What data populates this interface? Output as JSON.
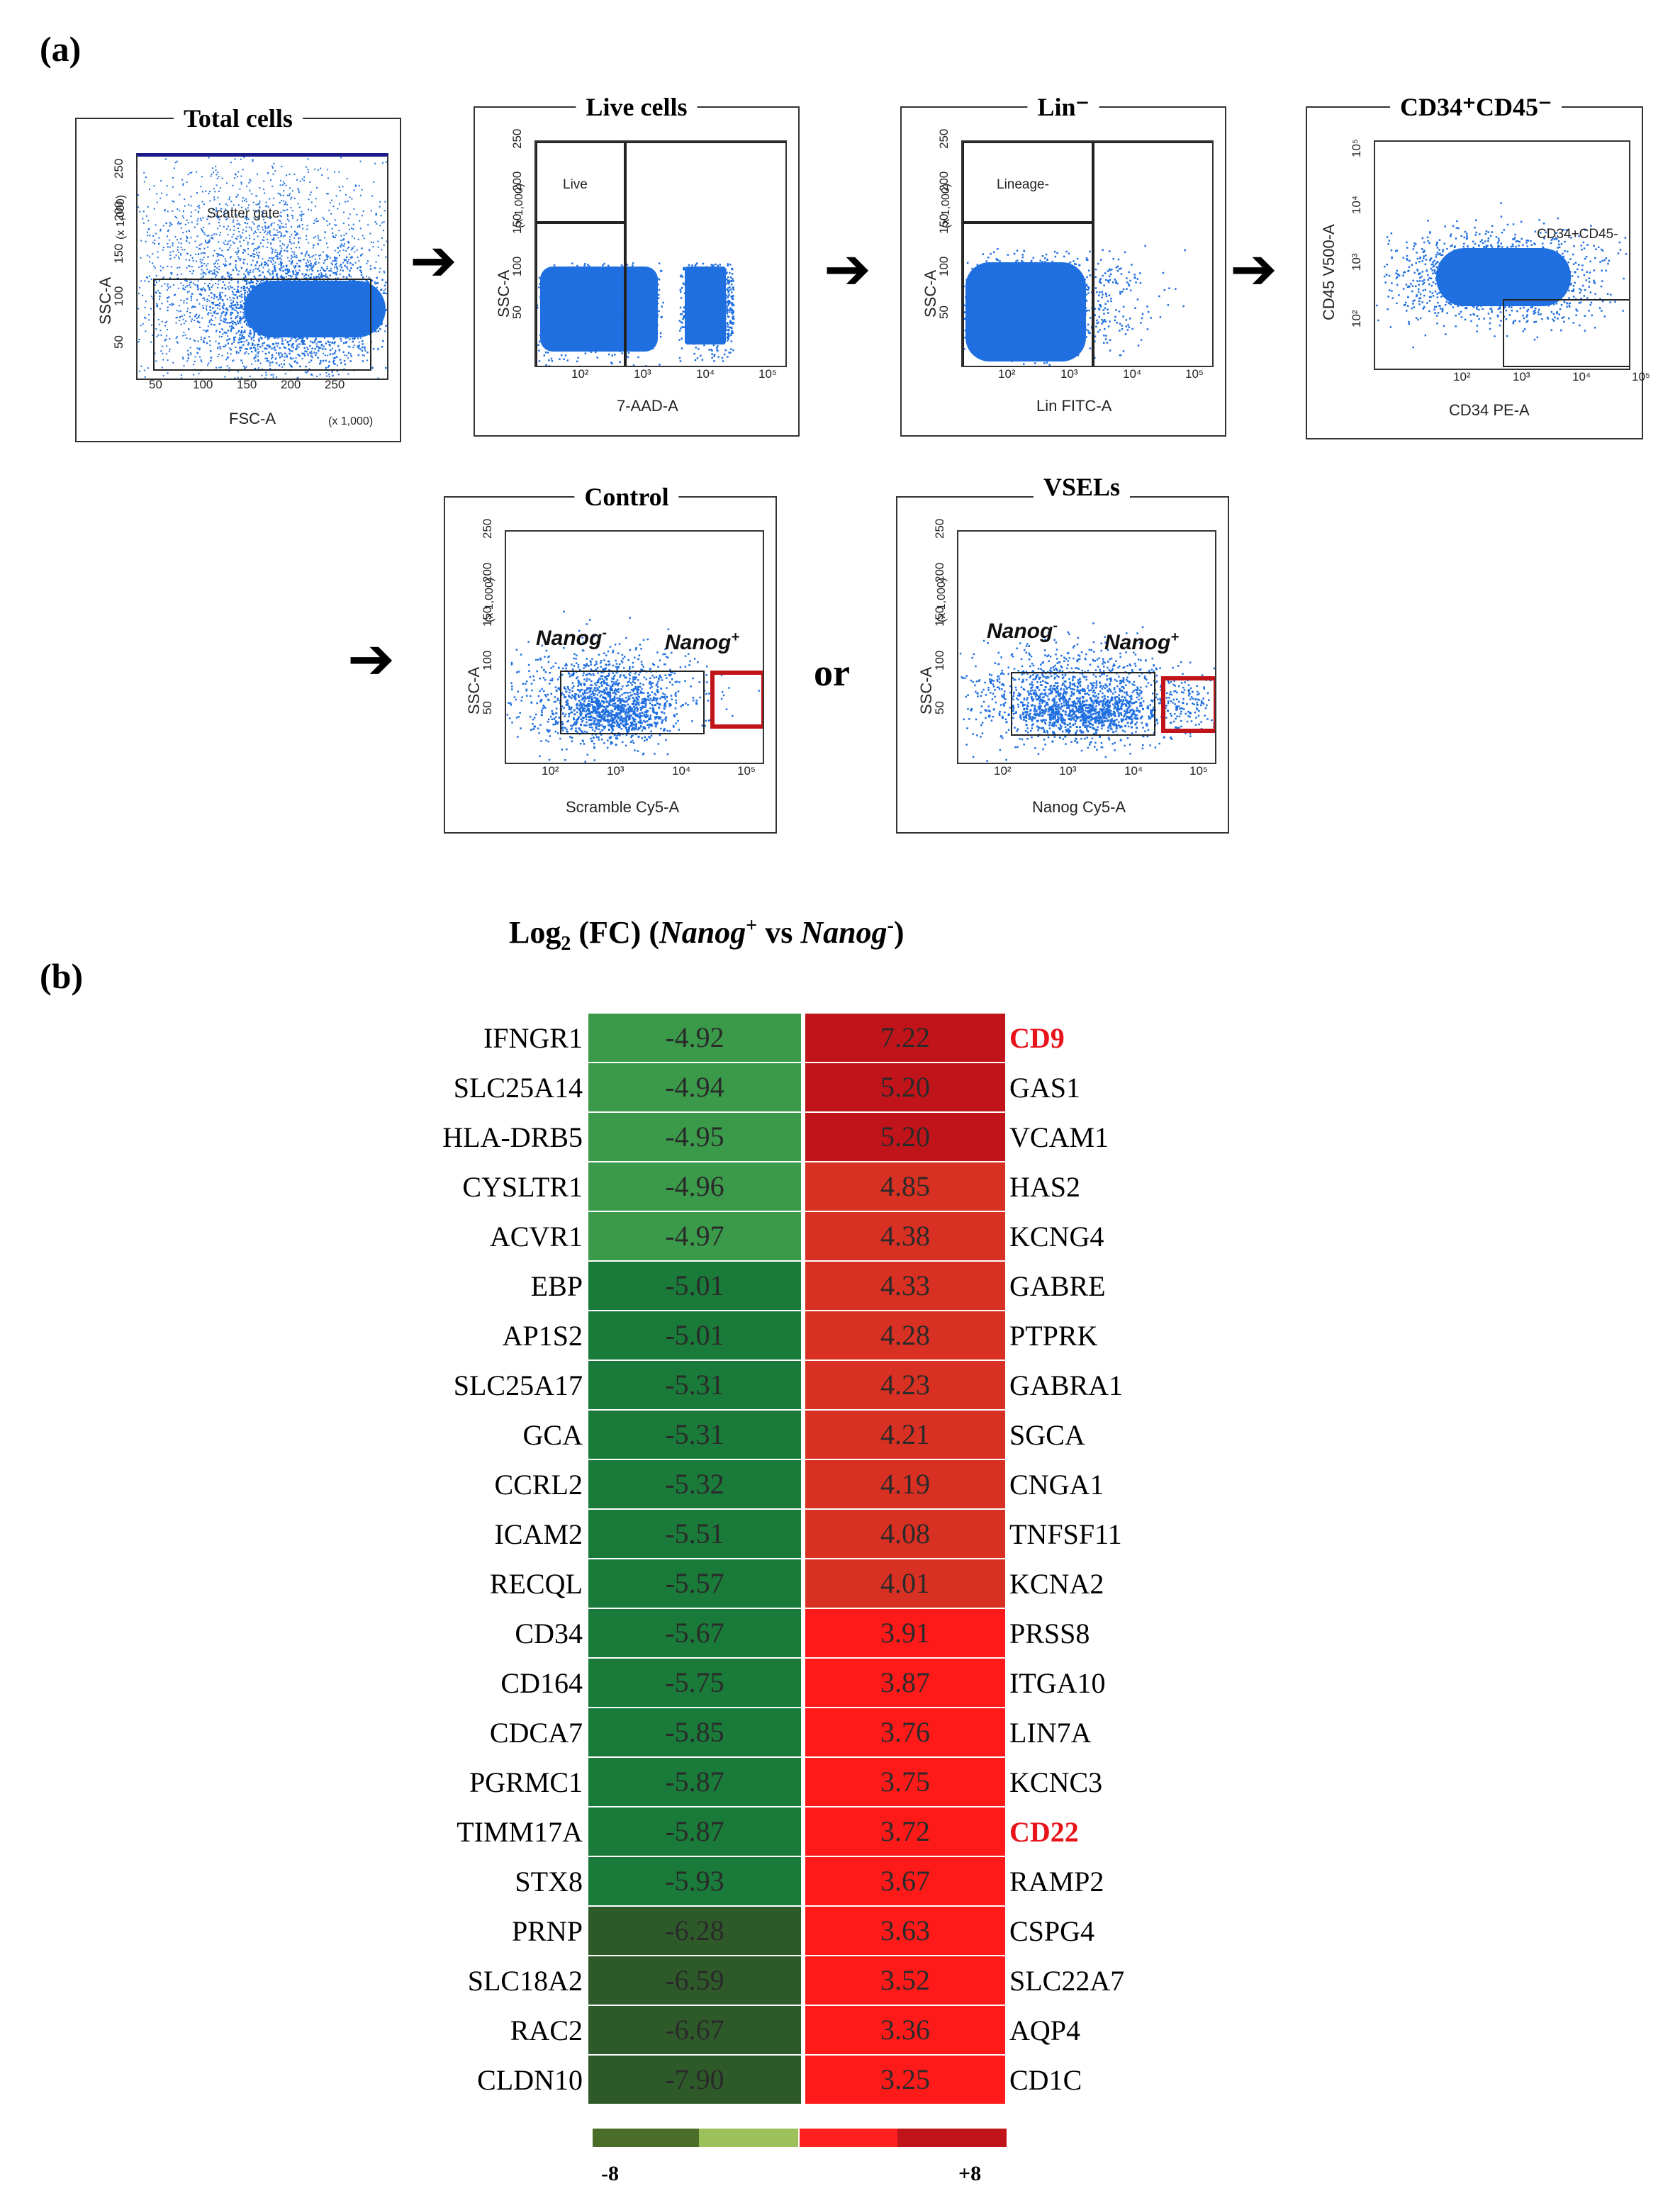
{
  "panel_a": {
    "label": "(a)",
    "plots": {
      "total": {
        "title": "Total cells",
        "ylabel": "SSC-A",
        "xlabel": "FSC-A",
        "yunit": "(x 1,000)",
        "xunit": "(x 1,000)",
        "gate_label": "Scatter gate",
        "yticks": [
          "250",
          "200",
          "150",
          "100",
          "50"
        ],
        "xticks": [
          "50",
          "100",
          "150",
          "200",
          "250"
        ]
      },
      "live": {
        "title": "Live cells",
        "ylabel": "SSC-A",
        "xlabel": "7-AAD-A",
        "yunit": "(x 1,000)",
        "gate_label": "Live",
        "yticks": [
          "250",
          "200",
          "150",
          "100",
          "50"
        ],
        "xticks": [
          "10²",
          "10³",
          "10⁴",
          "10⁵"
        ]
      },
      "lin": {
        "title": "Lin⁻",
        "ylabel": "SSC-A",
        "xlabel": "Lin FITC-A",
        "yunit": "(x 1,000)",
        "gate_label": "Lineage-",
        "yticks": [
          "250",
          "200",
          "150",
          "100",
          "50"
        ],
        "xticks": [
          "10²",
          "10³",
          "10⁴",
          "10⁵"
        ]
      },
      "cd34": {
        "title": "CD34⁺CD45⁻",
        "ylabel": "CD45 V500-A",
        "xlabel": "CD34 PE-A",
        "gate_label": "CD34+CD45-",
        "yticks": [
          "10⁵",
          "10⁴",
          "10³",
          "10²"
        ],
        "xticks": [
          "10²",
          "10³",
          "10⁴",
          "10⁵"
        ]
      },
      "control": {
        "title": "Control",
        "ylabel": "SSC-A",
        "xlabel": "Scramble Cy5-A",
        "yunit": "(x 1,000)",
        "neg_label": "Nanog",
        "neg_sup": "-",
        "pos_label": "Nanog",
        "pos_sup": "+",
        "yticks": [
          "250",
          "200",
          "150",
          "100",
          "50"
        ],
        "xticks": [
          "10²",
          "10³",
          "10⁴",
          "10⁵"
        ]
      },
      "vsels": {
        "title": "VSELs",
        "ylabel": "SSC-A",
        "xlabel": "Nanog Cy5-A",
        "yunit": "(x 1,000)",
        "neg_label": "Nanog",
        "neg_sup": "-",
        "pos_label": "Nanog",
        "pos_sup": "+",
        "yticks": [
          "250",
          "200",
          "150",
          "100",
          "50"
        ],
        "xticks": [
          "10²",
          "10³",
          "10⁴",
          "10⁵"
        ]
      }
    },
    "arrow_glyph": "➔",
    "or_text": "or"
  },
  "panel_b": {
    "label": "(b)",
    "title_prefix": "Log",
    "title_sub": "2",
    "title_mid": " (FC) (",
    "title_nanog1": "Nanog",
    "title_sup1": "+",
    "title_vs": " vs ",
    "title_nanog2": "Nanog",
    "title_sup2": "-",
    "title_end": ")",
    "colorbar_min": "-8",
    "colorbar_max": "+8"
  },
  "colors": {
    "dots": "#1f6fe0",
    "green_light": "#3a9a4a",
    "green_mid": "#1a7a3a",
    "green_dark": "#2e5a2a",
    "red_dark": "#c0141a",
    "red_mid": "#d83022",
    "red_bright": "#ff1a1a",
    "highlight": "#e8141c"
  },
  "chart_data": {
    "type": "heatmap",
    "title": "Log2 (FC) (Nanog+ vs Nanog-)",
    "scale": [
      -8,
      8
    ],
    "down_genes": [
      "IFNGR1",
      "SLC25A14",
      "HLA-DRB5",
      "CYSLTR1",
      "ACVR1",
      "EBP",
      "AP1S2",
      "SLC25A17",
      "GCA",
      "CCRL2",
      "ICAM2",
      "RECQL",
      "CD34",
      "CD164",
      "CDCA7",
      "PGRMC1",
      "TIMM17A",
      "STX8",
      "PRNP",
      "SLC18A2",
      "RAC2",
      "CLDN10"
    ],
    "down_values": [
      "-4.92",
      "-4.94",
      "-4.95",
      "-4.96",
      "-4.97",
      "-5.01",
      "-5.01",
      "-5.31",
      "-5.31",
      "-5.32",
      "-5.51",
      "-5.57",
      "-5.67",
      "-5.75",
      "-5.85",
      "-5.87",
      "-5.87",
      "-5.93",
      "-6.28",
      "-6.59",
      "-6.67",
      "-7.90"
    ],
    "up_genes": [
      "CD9",
      "GAS1",
      "VCAM1",
      "HAS2",
      "KCNG4",
      "GABRE",
      "PTPRK",
      "GABRA1",
      "SGCA",
      "CNGA1",
      "TNFSF11",
      "KCNA2",
      "PRSS8",
      "ITGA10",
      "LIN7A",
      "KCNC3",
      "CD22",
      "RAMP2",
      "CSPG4",
      "SLC22A7",
      "AQP4",
      "CD1C"
    ],
    "up_values": [
      "7.22",
      "5.20",
      "5.20",
      "4.85",
      "4.38",
      "4.33",
      "4.28",
      "4.23",
      "4.21",
      "4.19",
      "4.08",
      "4.01",
      "3.91",
      "3.87",
      "3.76",
      "3.75",
      "3.72",
      "3.67",
      "3.63",
      "3.52",
      "3.36",
      "3.25"
    ],
    "highlighted_genes": [
      "CD9",
      "CD22"
    ]
  }
}
